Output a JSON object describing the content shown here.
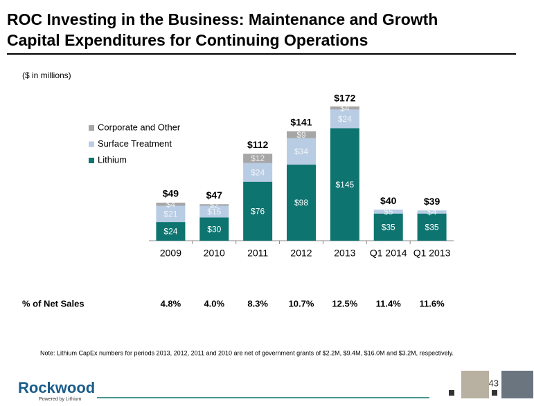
{
  "chart_data": {
    "type": "stacked-bar",
    "title": "ROC Investing in the Business: Maintenance and Growth Capital Expenditures for Continuing Operations",
    "subtitle": "($ in millions)",
    "categories": [
      "2009",
      "2010",
      "2011",
      "2012",
      "2013",
      "Q1 2014",
      "Q1 2013"
    ],
    "series": [
      {
        "name": "Lithium",
        "color": "#0e7470",
        "values": [
          24,
          30,
          76,
          98,
          145,
          35,
          35
        ],
        "value_labels": [
          "$24",
          "$30",
          "$76",
          "$98",
          "$145",
          "$35",
          "$35"
        ]
      },
      {
        "name": "Surface Treatment",
        "color": "#b8cce4",
        "values": [
          21,
          15,
          24,
          34,
          24,
          5,
          4
        ],
        "value_labels": [
          "$21",
          "$15",
          "$24",
          "$34",
          "$24",
          "$5",
          "$4"
        ]
      },
      {
        "name": "Corporate and Other",
        "color": "#a6a6a6",
        "values": [
          4,
          2,
          12,
          9,
          4,
          null,
          null
        ],
        "value_labels": [
          "$4",
          "$2",
          "$12",
          "$9",
          "$4",
          null,
          null
        ]
      }
    ],
    "totals": {
      "values": [
        49,
        47,
        112,
        141,
        172,
        40,
        39
      ],
      "value_labels": [
        "$49",
        "$47",
        "$112",
        "$141",
        "$172",
        "$40",
        "$39"
      ]
    },
    "ylim": [
      0,
      180
    ],
    "legend": "top-left"
  },
  "net_sales": {
    "label": "% of Net Sales",
    "values": [
      4.8,
      4.0,
      8.3,
      10.7,
      12.5,
      11.4,
      11.6
    ],
    "value_labels": [
      "4.8%",
      "4.0%",
      "8.3%",
      "10.7%",
      "12.5%",
      "11.4%",
      "11.6%"
    ]
  },
  "note": "Note: Lithium CapEx numbers for periods 2013, 2012, 2011 and 2010 are net of government grants of $2.2M, $9.4M, $16.0M and $3.2M, respectively.",
  "page_number": "43",
  "logo": {
    "name": "Rockwood",
    "tagline": "Powered by Lithium"
  }
}
